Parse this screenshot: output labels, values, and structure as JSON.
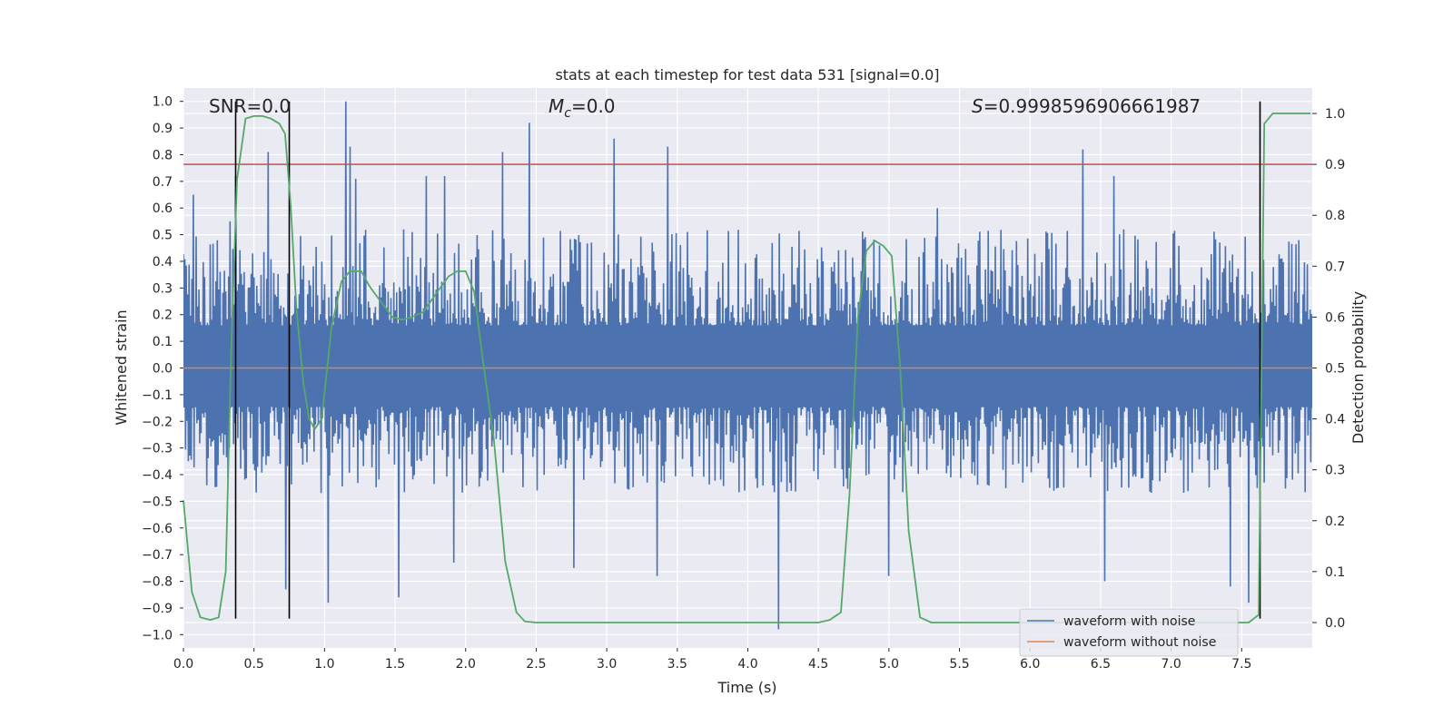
{
  "chart_data": {
    "type": "line",
    "title": "stats at each timestep for test data 531 [signal=0.0]",
    "xlabel": "Time (s)",
    "ylabel": "Whitened strain",
    "ylabel_right": "Detection probability",
    "xlim": [
      0.0,
      8.0
    ],
    "ylim": [
      -1.05,
      1.05
    ],
    "ylim_right": [
      -0.05,
      1.05
    ],
    "x_ticks": [
      0.0,
      0.5,
      1.0,
      1.5,
      2.0,
      2.5,
      3.0,
      3.5,
      4.0,
      4.5,
      5.0,
      5.5,
      6.0,
      6.5,
      7.0,
      7.5
    ],
    "x_tick_labels": [
      "0.0",
      "0.5",
      "1.0",
      "1.5",
      "2.0",
      "2.5",
      "3.0",
      "3.5",
      "4.0",
      "4.5",
      "5.0",
      "5.5",
      "6.0",
      "6.5",
      "7.0",
      "7.5"
    ],
    "y_ticks": [
      1.0,
      0.9,
      0.8,
      0.7,
      0.6,
      0.5,
      0.4,
      0.3,
      0.2,
      0.1,
      0.0,
      -0.1,
      -0.2,
      -0.3,
      -0.4,
      -0.5,
      -0.6,
      -0.7,
      -0.8,
      -0.9,
      -1.0
    ],
    "y_tick_labels": [
      "1.0",
      "0.9",
      "0.8",
      "0.7",
      "0.6",
      "0.5",
      "0.4",
      "0.3",
      "0.2",
      "0.1",
      "0.0",
      "−0.1",
      "−0.2",
      "−0.3",
      "−0.4",
      "−0.5",
      "−0.6",
      "−0.7",
      "−0.8",
      "−0.9",
      "−1.0"
    ],
    "y_ticks_right": [
      1.0,
      0.9,
      0.8,
      0.7,
      0.6,
      0.5,
      0.4,
      0.3,
      0.2,
      0.1,
      0.0
    ],
    "y_tick_labels_right": [
      "1.0",
      "0.9",
      "0.8",
      "0.7",
      "0.6",
      "0.5",
      "0.4",
      "0.3",
      "0.2",
      "0.1",
      "0.0"
    ],
    "annotations": {
      "snr": "SNR=0.0",
      "mc_symbol": "M",
      "mc_sub": "c",
      "mc_value": "=0.0",
      "s_symbol": "S",
      "s_value": "=0.9998596906661987"
    },
    "legend": {
      "placement": "lower-right",
      "entries": [
        "waveform with noise",
        "waveform without noise"
      ]
    },
    "colors": {
      "noise": "#4c72b0",
      "clean": "#dd8452",
      "probability": "#55a868",
      "threshold": "#c44e52",
      "vlines": "#000000",
      "axes_bg": "#eaeaf2",
      "grid": "#ffffff"
    },
    "noise_series": {
      "name": "waveform with noise",
      "n_samples": 1600,
      "envelope_upper": 0.4,
      "envelope_lower": -0.36,
      "notable_peaks": [
        [
          0.07,
          0.65
        ],
        [
          0.33,
          0.55
        ],
        [
          0.37,
          0.72
        ],
        [
          0.6,
          0.81
        ],
        [
          1.15,
          1.0
        ],
        [
          1.18,
          0.83
        ],
        [
          1.22,
          0.71
        ],
        [
          1.72,
          0.72
        ],
        [
          1.85,
          0.72
        ],
        [
          2.26,
          0.81
        ],
        [
          2.45,
          0.92
        ],
        [
          3.05,
          0.86
        ],
        [
          3.43,
          0.83
        ],
        [
          5.35,
          0.6
        ],
        [
          6.38,
          0.82
        ],
        [
          6.6,
          0.72
        ]
      ],
      "notable_troughs": [
        [
          0.72,
          -0.83
        ],
        [
          1.02,
          -0.88
        ],
        [
          1.52,
          -0.86
        ],
        [
          1.91,
          -0.73
        ],
        [
          2.76,
          -0.75
        ],
        [
          3.35,
          -0.78
        ],
        [
          4.22,
          -0.98
        ],
        [
          5.0,
          -0.78
        ],
        [
          6.53,
          -0.8
        ],
        [
          7.42,
          -0.82
        ],
        [
          7.55,
          -0.88
        ]
      ]
    },
    "clean_series": {
      "name": "waveform without noise",
      "x": [
        0.0,
        8.0
      ],
      "y": [
        0.0,
        0.0
      ]
    },
    "probability_series": {
      "name": "detection probability",
      "axis": "right",
      "x": [
        0.0,
        0.06,
        0.12,
        0.19,
        0.25,
        0.3,
        0.34,
        0.38,
        0.44,
        0.5,
        0.56,
        0.62,
        0.68,
        0.72,
        0.76,
        0.8,
        0.85,
        0.89,
        0.93,
        0.98,
        1.05,
        1.12,
        1.18,
        1.26,
        1.32,
        1.4,
        1.48,
        1.55,
        1.62,
        1.7,
        1.8,
        1.88,
        1.94,
        2.0,
        2.06,
        2.12,
        2.2,
        2.28,
        2.36,
        2.42,
        2.5,
        4.5,
        4.58,
        4.66,
        4.72,
        4.78,
        4.84,
        4.9,
        4.96,
        5.02,
        5.08,
        5.14,
        5.22,
        5.3,
        7.55,
        7.62,
        7.66,
        7.72,
        7.8,
        7.99
      ],
      "y": [
        0.24,
        0.06,
        0.01,
        0.005,
        0.01,
        0.1,
        0.55,
        0.87,
        0.99,
        0.995,
        0.995,
        0.99,
        0.98,
        0.96,
        0.82,
        0.62,
        0.47,
        0.4,
        0.38,
        0.4,
        0.58,
        0.67,
        0.69,
        0.69,
        0.66,
        0.63,
        0.6,
        0.595,
        0.6,
        0.61,
        0.65,
        0.68,
        0.69,
        0.69,
        0.65,
        0.52,
        0.36,
        0.12,
        0.02,
        0.002,
        0.0,
        0.0,
        0.005,
        0.02,
        0.25,
        0.6,
        0.73,
        0.75,
        0.74,
        0.72,
        0.5,
        0.18,
        0.01,
        0.0,
        0.0,
        0.015,
        0.98,
        1.0,
        1.0,
        1.0
      ]
    },
    "threshold": {
      "axis": "right",
      "value": 0.9
    },
    "vertical_lines": [
      {
        "x": 0.37,
        "y_top": 1.0,
        "y_bottom": -0.94
      },
      {
        "x": 0.75,
        "y_top": 1.0,
        "y_bottom": -0.94
      },
      {
        "x": 7.63,
        "y_top": 1.0,
        "y_bottom": -0.94
      }
    ]
  }
}
